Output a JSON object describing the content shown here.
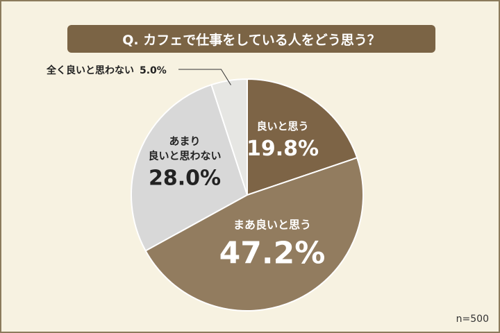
{
  "chart_data": {
    "type": "pie",
    "title": "Q. カフェで仕事をしている人をどう思う？",
    "note": "n=500",
    "categories": [
      "良いと思う",
      "まあ良いと思う",
      "あまり\n良いと思わない",
      "全く良いと思わない"
    ],
    "values": [
      19.8,
      47.2,
      28.0,
      5.0
    ],
    "value_labels": [
      "19.8%",
      "47.2%",
      "28.0%",
      "5.0%"
    ],
    "colors": [
      "#7d6446",
      "#927c5f",
      "#d8d8d8",
      "#e6e6e3"
    ],
    "start_angle": 90,
    "direction": "clockwise"
  }
}
